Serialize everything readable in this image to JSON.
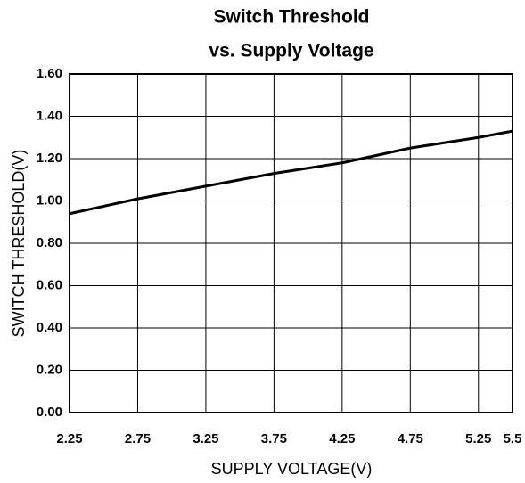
{
  "chart_data": {
    "type": "line",
    "title": "Switch Threshold",
    "subtitle": "vs. Supply Voltage",
    "xlabel": "SUPPLY VOLTAGE(V)",
    "ylabel": "SWITCH THRESHOLD(V)",
    "x": [
      2.25,
      2.75,
      3.25,
      3.75,
      4.25,
      4.75,
      5.25,
      5.5
    ],
    "values": [
      0.94,
      1.01,
      1.07,
      1.13,
      1.18,
      1.25,
      1.3,
      1.33
    ],
    "color": "#000000",
    "xlim": [
      2.25,
      5.5
    ],
    "xticks": [
      2.25,
      2.75,
      3.25,
      3.75,
      4.25,
      4.75,
      5.25,
      5.5
    ],
    "ylim": [
      0,
      1.6
    ],
    "yticks": [
      {
        "value": 0,
        "label": "0.00"
      },
      {
        "value": 0.2,
        "label": "0.20"
      },
      {
        "value": 0.4,
        "label": "0.40"
      },
      {
        "value": 0.6,
        "label": "0.60"
      },
      {
        "value": 0.8,
        "label": "0.80"
      },
      {
        "value": 1.0,
        "label": "1.00"
      },
      {
        "value": 1.2,
        "label": "1.20"
      },
      {
        "value": 1.4,
        "label": "1.40"
      },
      {
        "value": 1.6,
        "label": "1.60"
      }
    ],
    "grid": true
  }
}
